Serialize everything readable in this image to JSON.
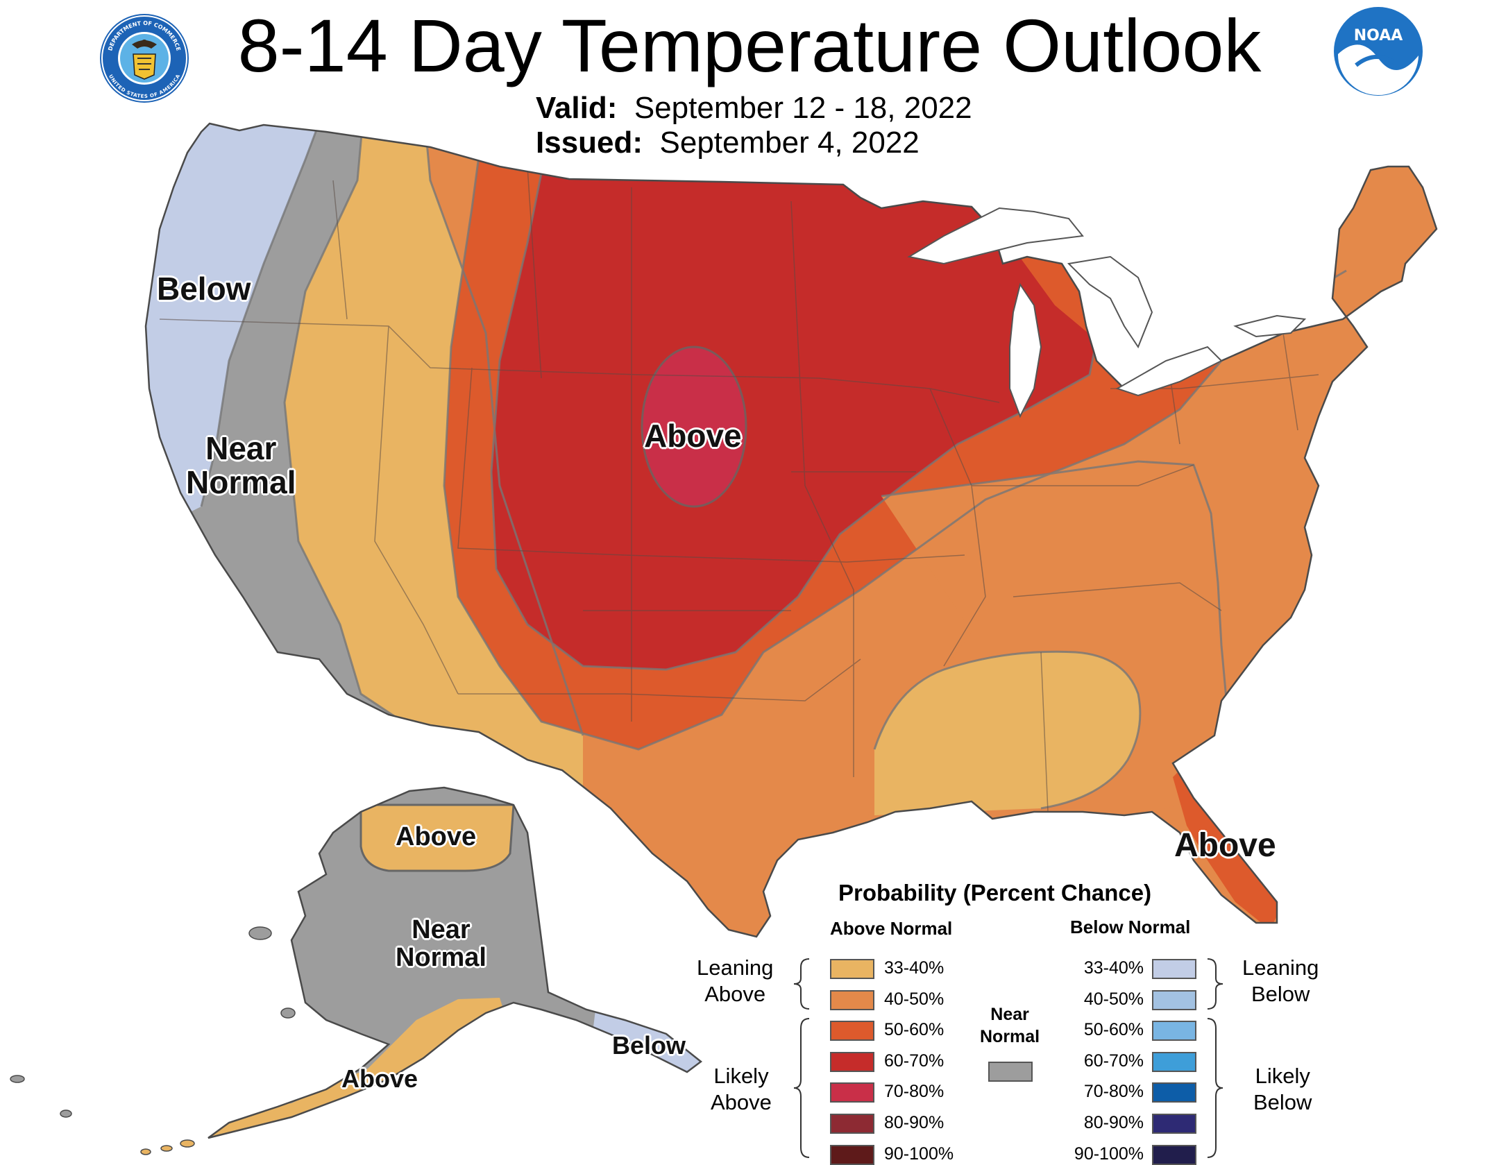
{
  "title": "8-14 Day Temperature Outlook",
  "valid": {
    "label": "Valid:",
    "value": "September 12 - 18, 2022"
  },
  "issued": {
    "label": "Issued:",
    "value": "September 4, 2022"
  },
  "logos": {
    "left": {
      "icon": "department-of-commerce-seal-icon",
      "text_top": "DEPARTMENT OF COMMERCE",
      "text_bottom": "UNITED STATES OF AMERICA"
    },
    "right": {
      "icon": "noaa-logo-icon",
      "text": "NOAA"
    }
  },
  "map_labels": {
    "west_below": "Below",
    "west_near_1": "Near",
    "west_near_2": "Normal",
    "central_above": "Above",
    "florida_above": "Above",
    "ak_north_above": "Above",
    "ak_near_1": "Near",
    "ak_near_2": "Normal",
    "ak_panhandle_below": "Below",
    "ak_south_above": "Above"
  },
  "legend": {
    "title": "Probability (Percent Chance)",
    "above_header": "Above Normal",
    "below_header": "Below Normal",
    "near_label_1": "Near",
    "near_label_2": "Normal",
    "near_color": "#9d9d9d",
    "leaning_above_1": "Leaning",
    "leaning_above_2": "Above",
    "likely_above_1": "Likely",
    "likely_above_2": "Above",
    "leaning_below_1": "Leaning",
    "leaning_below_2": "Below",
    "likely_below_1": "Likely",
    "likely_below_2": "Below",
    "above": [
      {
        "label": "33-40%",
        "color": "#e9b462"
      },
      {
        "label": "40-50%",
        "color": "#e4894a"
      },
      {
        "label": "50-60%",
        "color": "#dd5a2c"
      },
      {
        "label": "60-70%",
        "color": "#c52c2a"
      },
      {
        "label": "70-80%",
        "color": "#c92f48"
      },
      {
        "label": "80-90%",
        "color": "#8d2a33"
      },
      {
        "label": "90-100%",
        "color": "#5e1a1a"
      }
    ],
    "below": [
      {
        "label": "33-40%",
        "color": "#c2cde6"
      },
      {
        "label": "40-50%",
        "color": "#a3c2e2"
      },
      {
        "label": "50-60%",
        "color": "#79b5e3"
      },
      {
        "label": "60-70%",
        "color": "#3e9ed9"
      },
      {
        "label": "70-80%",
        "color": "#0d5da8"
      },
      {
        "label": "80-90%",
        "color": "#2e2a74"
      },
      {
        "label": "90-100%",
        "color": "#211e4c"
      }
    ]
  }
}
